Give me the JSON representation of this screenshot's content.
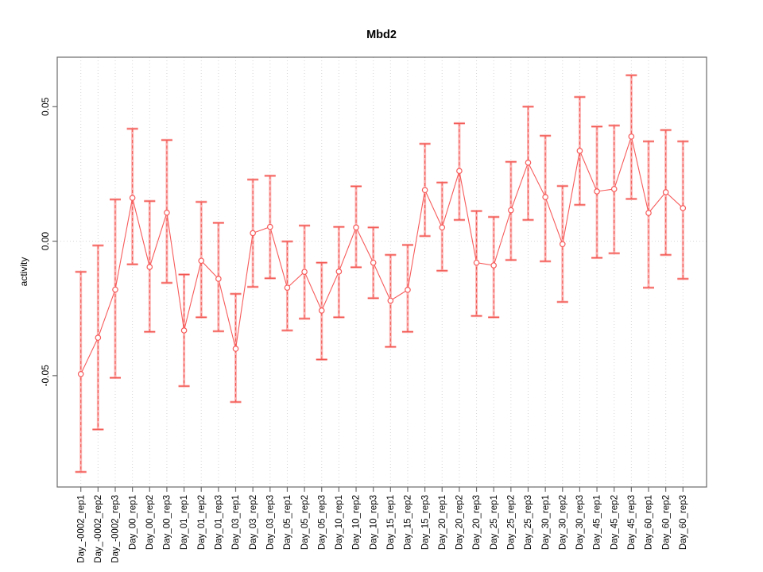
{
  "chart_data": {
    "type": "line",
    "title": "Mbd2",
    "xlabel": "",
    "ylabel": "activity",
    "ylim": [
      -0.0914,
      0.0684
    ],
    "grid": "dotted vertical line per category; dotted horizontal line at y=0",
    "legend_position": "none",
    "yticks": [
      {
        "label": "0.05",
        "value": 0.05
      },
      {
        "label": "0.00",
        "value": 0.0
      },
      {
        "label": "-0.05",
        "value": -0.05
      }
    ],
    "categories": [
      "Day_-0002_rep1",
      "Day_-0002_rep2",
      "Day_-0002_rep3",
      "Day_00_rep1",
      "Day_00_rep2",
      "Day_00_rep3",
      "Day_01_rep1",
      "Day_01_rep2",
      "Day_01_rep3",
      "Day_03_rep1",
      "Day_03_rep2",
      "Day_03_rep3",
      "Day_05_rep1",
      "Day_05_rep2",
      "Day_05_rep3",
      "Day_10_rep1",
      "Day_10_rep2",
      "Day_10_rep3",
      "Day_15_rep1",
      "Day_15_rep2",
      "Day_15_rep3",
      "Day_20_rep1",
      "Day_20_rep2",
      "Day_20_rep3",
      "Day_25_rep1",
      "Day_25_rep2",
      "Day_25_rep3",
      "Day_30_rep1",
      "Day_30_rep2",
      "Day_30_rep3",
      "Day_45_rep1",
      "Day_45_rep2",
      "Day_45_rep3",
      "Day_60_rep1",
      "Day_60_rep2",
      "Day_60_rep3"
    ],
    "series": [
      {
        "name": "activity",
        "marker": "open-circle",
        "values": [
          -0.0494,
          -0.0359,
          -0.018,
          0.0161,
          -0.0096,
          0.0106,
          -0.0332,
          -0.0073,
          -0.014,
          -0.04,
          0.003,
          0.0053,
          -0.0173,
          -0.0114,
          -0.0258,
          -0.0113,
          0.0051,
          -0.008,
          -0.0221,
          -0.0181,
          0.019,
          0.0051,
          0.0261,
          -0.008,
          -0.009,
          0.0115,
          0.0292,
          0.0164,
          -0.0011,
          0.0336,
          0.0185,
          0.0194,
          0.0389,
          0.0105,
          0.0182,
          0.0123
        ],
        "err_hi": [
          -0.0114,
          -0.0016,
          0.0155,
          0.0418,
          0.0149,
          0.0376,
          -0.0124,
          0.0146,
          0.0068,
          -0.0196,
          0.0229,
          0.0243,
          -0.0001,
          0.0058,
          -0.008,
          0.0053,
          0.0204,
          0.0051,
          -0.0051,
          -0.0014,
          0.0362,
          0.0218,
          0.0438,
          0.0112,
          0.009,
          0.0295,
          0.05,
          0.0392,
          0.0205,
          0.0536,
          0.0426,
          0.043,
          0.0617,
          0.0371,
          0.0413,
          0.0371
        ],
        "err_lo": [
          -0.0858,
          -0.07,
          -0.0508,
          -0.0086,
          -0.0337,
          -0.0155,
          -0.0539,
          -0.0283,
          -0.0335,
          -0.0598,
          -0.017,
          -0.0138,
          -0.0332,
          -0.0288,
          -0.044,
          -0.0283,
          -0.0097,
          -0.0212,
          -0.0393,
          -0.0337,
          0.0019,
          -0.011,
          0.0079,
          -0.0278,
          -0.0283,
          -0.007,
          0.0079,
          -0.0075,
          -0.0226,
          0.0135,
          -0.0062,
          -0.0045,
          0.0157,
          -0.0173,
          -0.0051,
          -0.014
        ]
      }
    ],
    "colors": {
      "line": "#f75b5b",
      "marker_stroke": "#f75b5b",
      "error_stem_light": "rgba(250,120,120,0.55)",
      "error_cap": "#f2564f",
      "grid": "#d6d6d6",
      "axis": "#6b6b6b",
      "text": "#000000",
      "background": "#ffffff"
    }
  }
}
